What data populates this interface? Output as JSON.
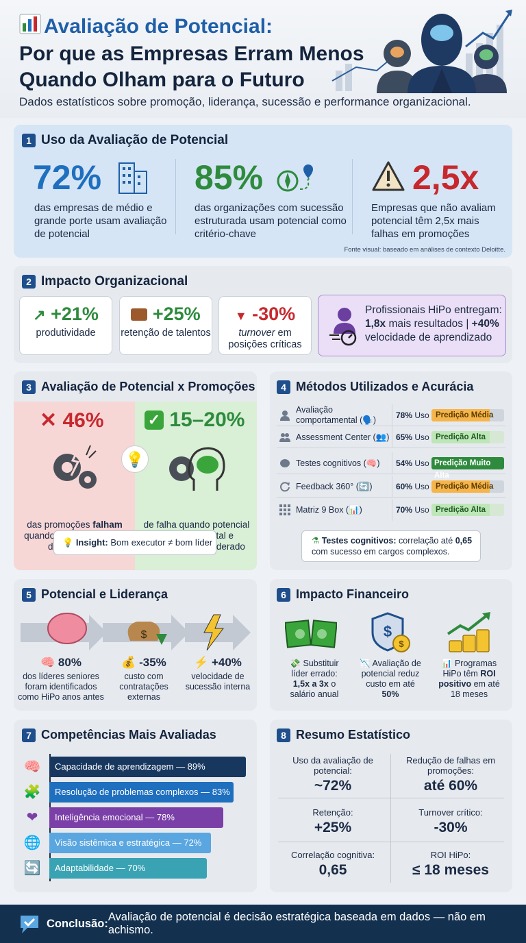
{
  "header": {
    "title_line1": "Avaliação de Potencial:",
    "title_line2": "Por que as Empresas Erram Menos",
    "title_line3": "Quando Olham para o Futuro",
    "subtitle": "Dados estatísticos sobre promoção, liderança, sucessão e performance organizacional.",
    "icon": "bar-chart-icon"
  },
  "section1": {
    "number": "1",
    "title": "Uso da Avaliação de Potencial",
    "stats": [
      {
        "value": "72%",
        "text": "das empresas de médio e grande porte usam avaliação de potencial",
        "icon": "building-icon",
        "color": "#1f6fbf"
      },
      {
        "value": "85%",
        "text": "das organizações com sucessão estruturada usam potencial como critério-chave",
        "icon": "route-icon",
        "color": "#2e8b3d"
      },
      {
        "value": "2,5x",
        "text": "Empresas que não avaliam potencial têm 2,5x mais falhas em promoções",
        "icon": "warning-icon",
        "color": "#c7282e"
      }
    ],
    "source": "Fonte visual: baseado em análises de contexto Deloitte."
  },
  "section2": {
    "number": "2",
    "title": "Impacto Organizacional",
    "boxes": [
      {
        "value": "+21%",
        "label": "produtividade",
        "icon": "trend-up-icon",
        "color": "#2e8b3d"
      },
      {
        "value": "+25%",
        "label": "retenção de talentos",
        "icon": "briefcase-icon",
        "color": "#2e8b3d"
      },
      {
        "value": "-30%",
        "label_prefix": "turnover",
        "label_rest": " em posições críticas",
        "icon": "triangle-down-icon",
        "color": "#c7282e"
      }
    ],
    "hipo": {
      "line1": "Profissionais HiPo entregam:",
      "line2_bold": "1,8x",
      "line2_rest": " mais resultados | ",
      "line2_bold2": "+40%",
      "line3": "velocidade de aprendizado"
    }
  },
  "section3": {
    "number": "3",
    "title": "Avaliação de Potencial x Promoções",
    "left_value": "46%",
    "left_text_pre": "das promoções ",
    "left_text_bold": "falham",
    "left_text_post": " quando baseadas só em desempenho",
    "right_value": "15–20%",
    "right_text": "de falha quando potencial comportamental e cognitivo é considerado",
    "insight_bold": "Insight:",
    "insight_text": " Bom executor ≠ bom líder"
  },
  "section4": {
    "number": "4",
    "title": "Métodos Utilizados e Acurácia",
    "methods": [
      {
        "name": "Avaliação comportamental (🗣️)",
        "pct": "78%",
        "uso": " Uso",
        "prediction": "Predição Média",
        "level": "media"
      },
      {
        "name": "Assessment Center (👥)",
        "pct": "65%",
        "uso": " Uso",
        "prediction": "Predição Alta",
        "level": "alta"
      },
      {
        "name": "Testes cognitivos (🧠)",
        "pct": "54%",
        "uso": " Uso",
        "prediction": "Predição Muito Alta",
        "level": "muito-alta"
      },
      {
        "name": "Feedback 360° (🔄)",
        "pct": "60%",
        "uso": " Uso",
        "prediction": "Predição Média",
        "level": "media"
      },
      {
        "name": "Matriz 9 Box (📊)",
        "pct": "70%",
        "uso": " Uso",
        "prediction": "Predição Alta",
        "level": "alta"
      }
    ],
    "note_bold": "Testes cognitivos:",
    "note_text": " correlação até ",
    "note_bold2": "0,65",
    "note_text2": "com sucesso em cargos complexos."
  },
  "section5": {
    "number": "5",
    "title": "Potencial e Liderança",
    "items": [
      {
        "value": "🧠 80%",
        "text": "dos líderes seniores foram identificados como HiPo anos antes"
      },
      {
        "value": "💰 -35%",
        "text": "custo com contratações externas"
      },
      {
        "value": "⚡ +40%",
        "text": "velocidade de sucessão interna"
      }
    ]
  },
  "section6": {
    "number": "6",
    "title": "Impacto Financeiro",
    "items": [
      {
        "head": "💸 Substituir líder errado:",
        "bold": "1,5x a 3x",
        "tail": " o salário anual"
      },
      {
        "head": "📉 Avaliação de potencial reduz custo em até",
        "bold": "50%",
        "tail": ""
      },
      {
        "head": "📊 Programas HiPo têm ",
        "bold": "ROI positivo",
        "tail": " em até 18 meses"
      }
    ]
  },
  "section7": {
    "number": "7",
    "title": "Competências Mais Avaliadas",
    "competencies": [
      {
        "label": "Capacidade de aprendizagem — 89%",
        "value": 89,
        "color": "#17375f",
        "icon": "brain-icon"
      },
      {
        "label": "Resolução de problemas complexos — 83%",
        "value": 83,
        "color": "#1f6fbf",
        "icon": "puzzle-icon"
      },
      {
        "label": "Inteligência emocional — 78%",
        "value": 78,
        "color": "#7b3fa8",
        "icon": "heart-icon"
      },
      {
        "label": "Visão sistêmica e estratégica — 72%",
        "value": 72,
        "color": "#5aa6e0",
        "icon": "globe-icon"
      },
      {
        "label": "Adaptabilidade — 70%",
        "value": 70,
        "color": "#3aa3b3",
        "icon": "cycle-icon"
      }
    ]
  },
  "section8": {
    "number": "8",
    "title": "Resumo Estatístico",
    "cells": [
      {
        "key": "Uso da avaliação de potencial:",
        "value": "~72%"
      },
      {
        "key": "Redução de falhas em promoções:",
        "value": "até 60%"
      },
      {
        "key": "Retenção:",
        "value": "+25%"
      },
      {
        "key": "Turnover crítico:",
        "value": "-30%"
      },
      {
        "key": "Correlação cognitiva:",
        "value": "0,65"
      },
      {
        "key": "ROI HiPo:",
        "value": "≤ 18 meses"
      }
    ]
  },
  "footer": {
    "bold": "Conclusão:",
    "text": " Avaliação de potencial é decisão estratégica baseada em dados — não em achismo."
  }
}
